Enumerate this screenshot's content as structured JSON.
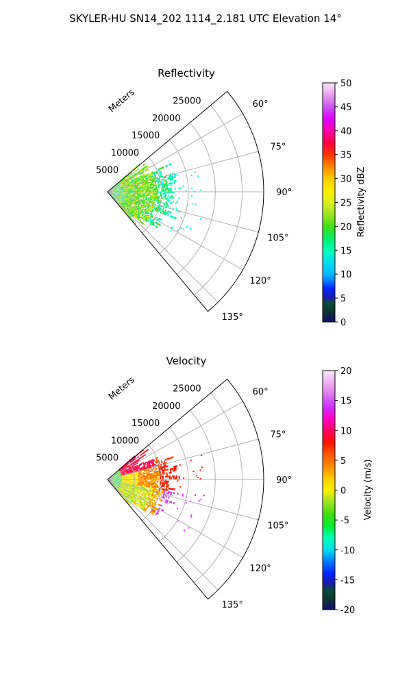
{
  "suptitle": "SKYLER-HU  SN14_202  1114_2.181 UTC Elevation 14°",
  "chart_data": [
    {
      "type": "polar-sector",
      "title": "Reflectivity",
      "radial_label": "Meters",
      "radial_ticks": [
        "5000",
        "10000",
        "15000",
        "20000",
        "25000"
      ],
      "angle_ticks": [
        "60°",
        "75°",
        "90°",
        "105°",
        "120°",
        "135°"
      ],
      "angle_range_deg": [
        50,
        140
      ],
      "r_range_m": [
        0,
        29000
      ],
      "data_extent_m": 15000,
      "colorbar": {
        "label": "Reflectivity dBZ",
        "ticks": [
          "0",
          "5",
          "10",
          "15",
          "20",
          "25",
          "30",
          "35",
          "40",
          "45",
          "50"
        ],
        "range": [
          0,
          50
        ]
      }
    },
    {
      "type": "polar-sector",
      "title": "Velocity",
      "radial_label": "Meters",
      "radial_ticks": [
        "5000",
        "10000",
        "15000",
        "20000",
        "25000"
      ],
      "angle_ticks": [
        "60°",
        "75°",
        "90°",
        "105°",
        "120°",
        "135°"
      ],
      "angle_range_deg": [
        50,
        140
      ],
      "r_range_m": [
        0,
        29000
      ],
      "data_extent_m": 15000,
      "colorbar": {
        "label": "Velocity (m/s)",
        "ticks": [
          "-20",
          "-15",
          "-10",
          "-5",
          "0",
          "5",
          "10",
          "15",
          "20"
        ],
        "range": [
          -20,
          20
        ]
      }
    }
  ]
}
